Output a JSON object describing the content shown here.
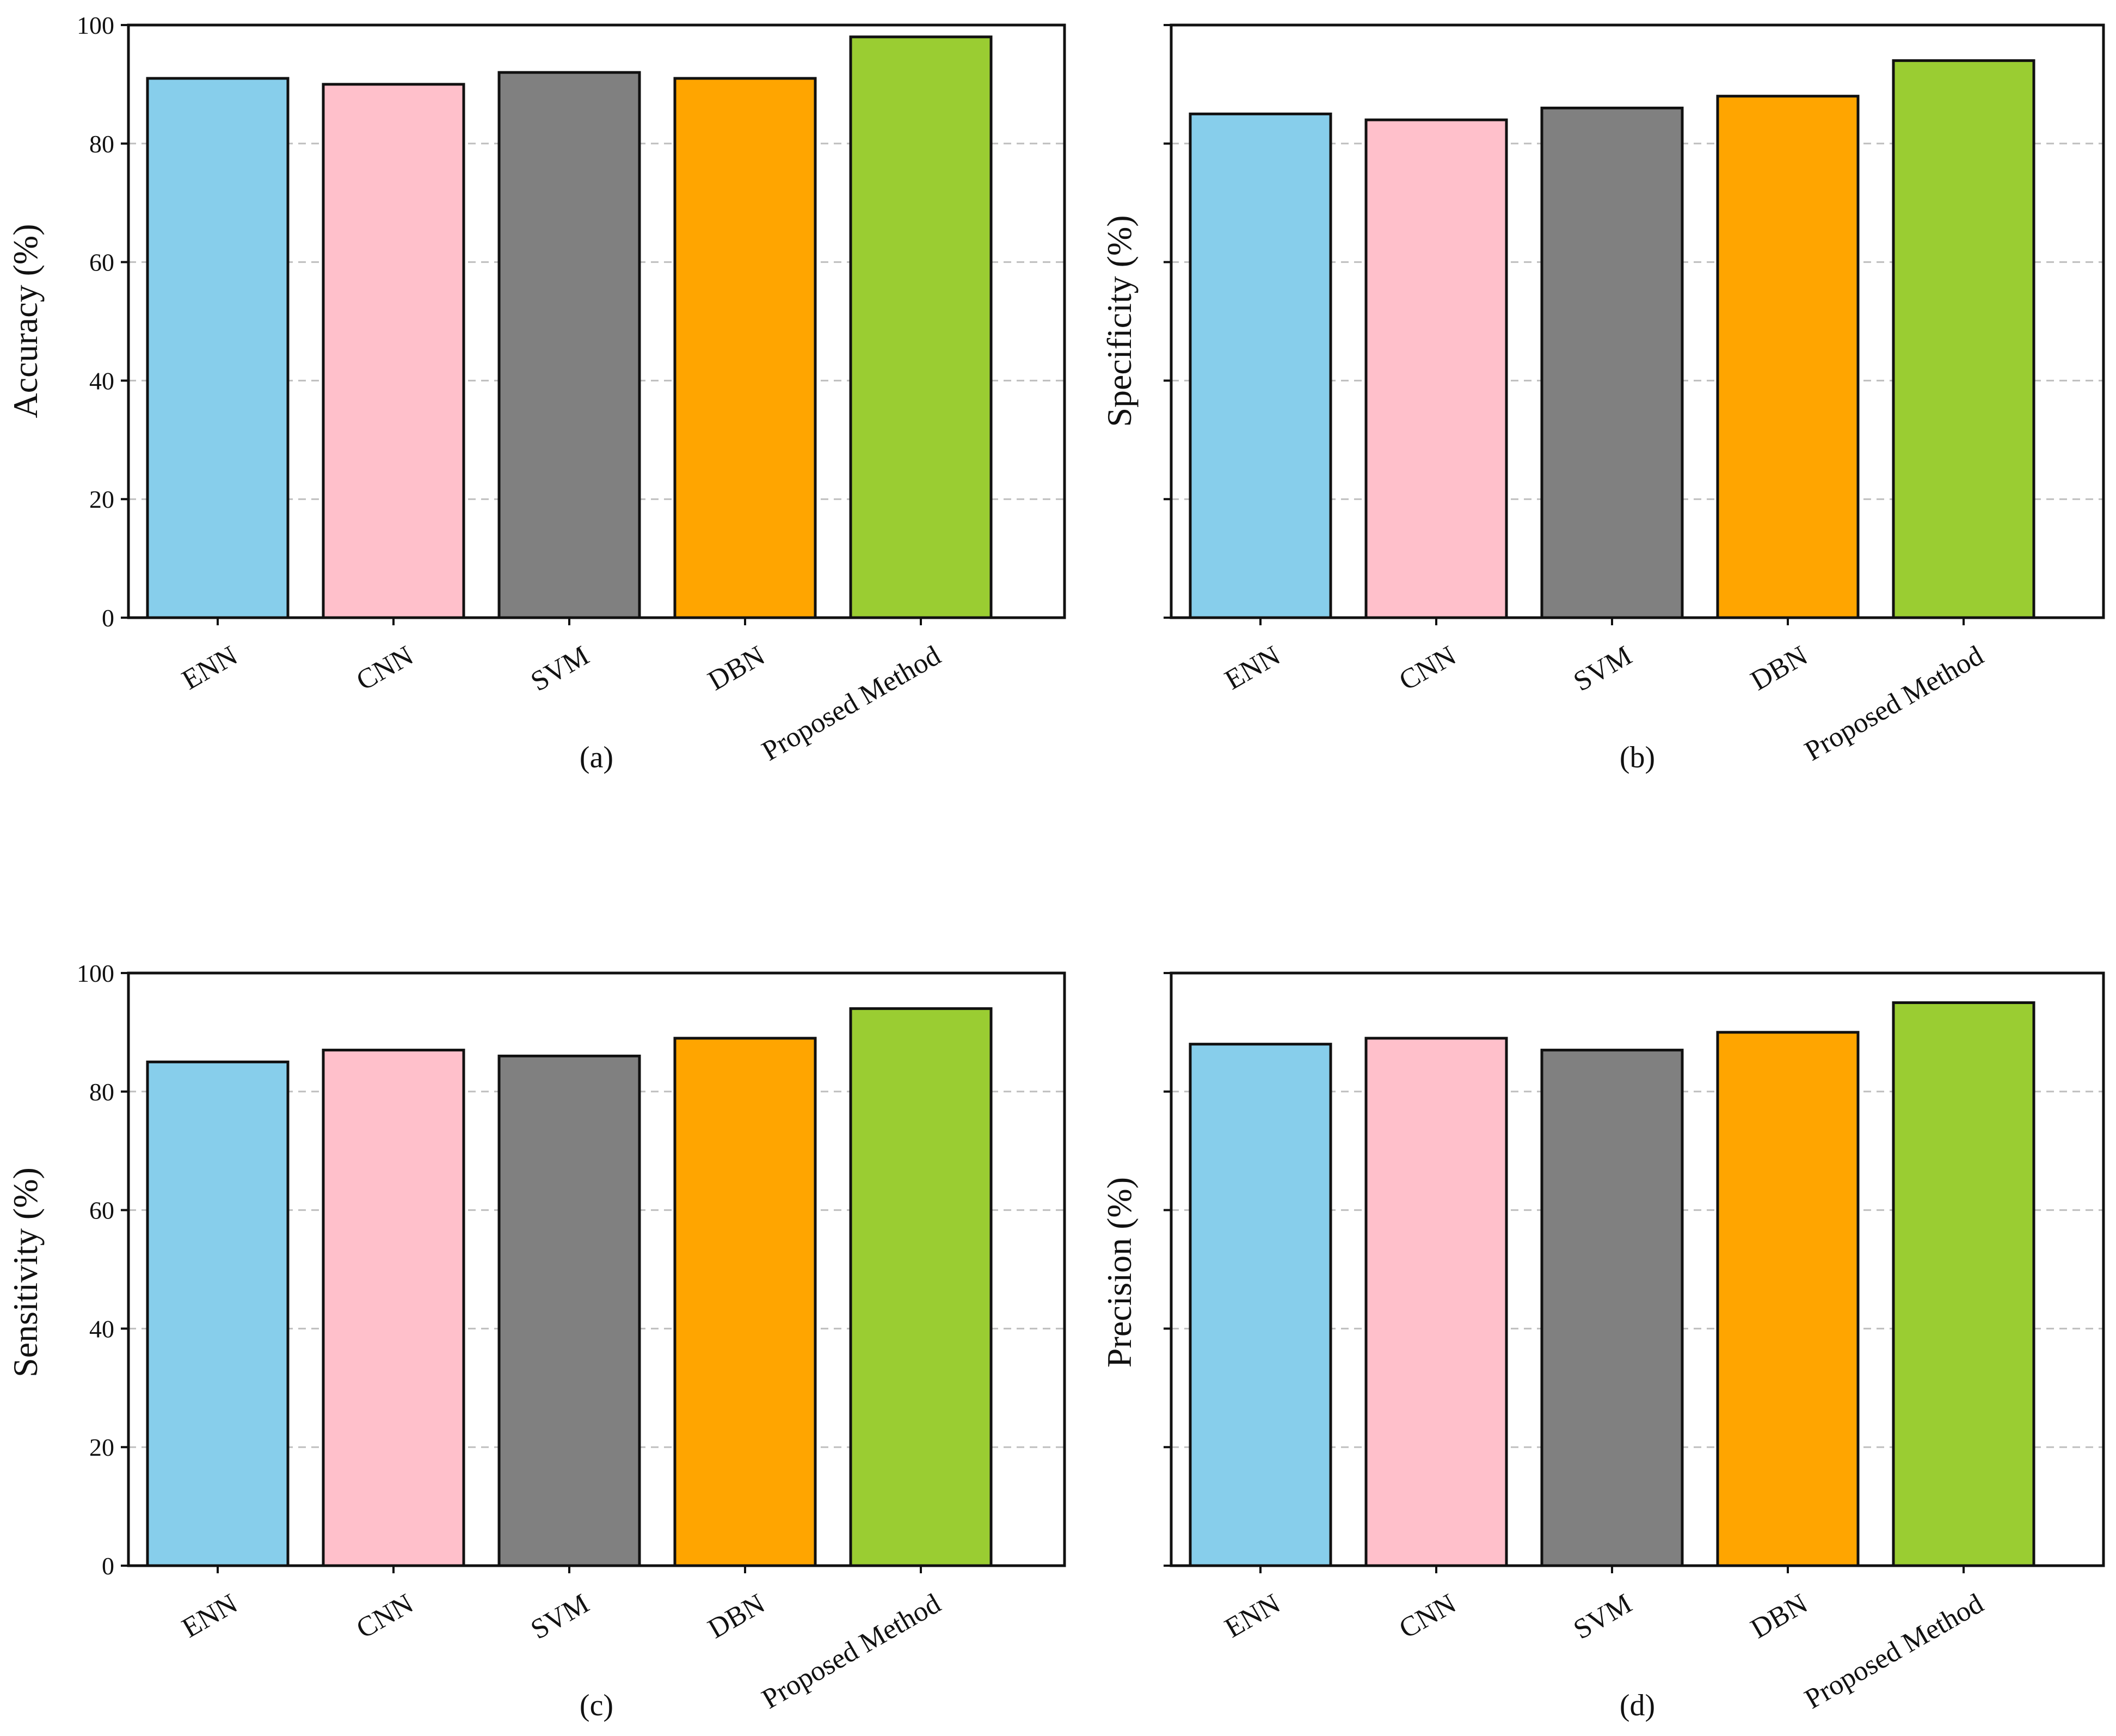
{
  "chart_data": [
    {
      "type": "bar",
      "panel": "(a)",
      "categories": [
        "ENN",
        "CNN",
        "SVM",
        "DBN",
        "Proposed Method"
      ],
      "values": [
        91,
        90,
        92,
        91,
        98
      ],
      "ylabel": "Accuracy (%)",
      "xlabel": "",
      "ylim": [
        0,
        100
      ],
      "yticks": [
        "0",
        "20",
        "40",
        "60",
        "80",
        "100"
      ],
      "grid": "horizontal-dashed",
      "colors": [
        "#87CEEB",
        "#FFC0CB",
        "#808080",
        "#FFA500",
        "#9ACD32"
      ]
    },
    {
      "type": "bar",
      "panel": "(b)",
      "categories": [
        "ENN",
        "CNN",
        "SVM",
        "DBN",
        "Proposed Method"
      ],
      "values": [
        85,
        84,
        86,
        88,
        94
      ],
      "ylabel": "Specificity (%)",
      "xlabel": "",
      "ylim": [
        0,
        100
      ],
      "yticks": [],
      "grid": "horizontal-dashed",
      "colors": [
        "#87CEEB",
        "#FFC0CB",
        "#808080",
        "#FFA500",
        "#9ACD32"
      ]
    },
    {
      "type": "bar",
      "panel": "(c)",
      "categories": [
        "ENN",
        "CNN",
        "SVM",
        "DBN",
        "Proposed Method"
      ],
      "values": [
        85,
        87,
        86,
        89,
        94
      ],
      "ylabel": "Sensitivity (%)",
      "xlabel": "",
      "ylim": [
        0,
        100
      ],
      "yticks": [
        "0",
        "20",
        "40",
        "60",
        "80",
        "100"
      ],
      "grid": "horizontal-dashed",
      "colors": [
        "#87CEEB",
        "#FFC0CB",
        "#808080",
        "#FFA500",
        "#9ACD32"
      ]
    },
    {
      "type": "bar",
      "panel": "(d)",
      "categories": [
        "ENN",
        "CNN",
        "SVM",
        "DBN",
        "Proposed Method"
      ],
      "values": [
        88,
        89,
        87,
        90,
        95
      ],
      "ylabel": "Precision (%)",
      "xlabel": "",
      "ylim": [
        0,
        100
      ],
      "yticks": [],
      "grid": "horizontal-dashed",
      "colors": [
        "#87CEEB",
        "#FFC0CB",
        "#808080",
        "#FFA500",
        "#9ACD32"
      ]
    }
  ]
}
